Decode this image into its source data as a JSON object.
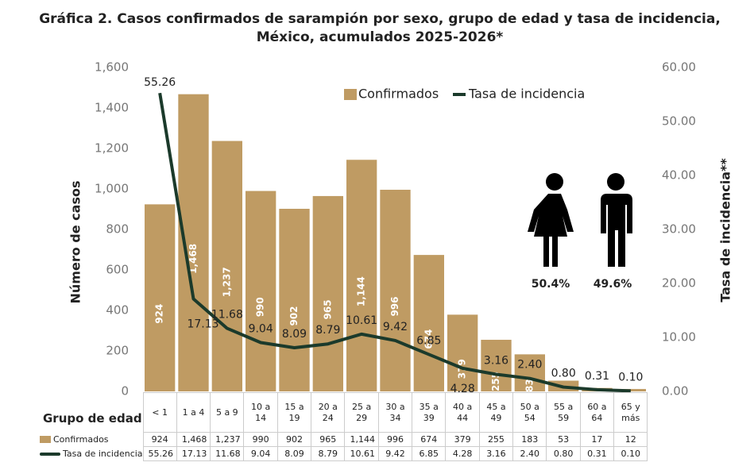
{
  "chart_data": {
    "type": "combo",
    "title": [
      "Gráfica 2. Casos confirmados  de sarampión por sexo, grupo de edad y tasa de incidencia,",
      "México, acumulados 2025-2026*"
    ],
    "categories": [
      "< 1",
      "1 a 4",
      "5 a 9",
      "10 a 14",
      "15 a 19",
      "20 a 24",
      "25 a 29",
      "30 a 34",
      "35 a 39",
      "40 a 44",
      "45 a 49",
      "50 a 54",
      "55 a 59",
      "60 a 64",
      "65 y más"
    ],
    "x_label": "Grupo de edad",
    "y_label": "Número de casos",
    "y2_label": "Tasa de incidencia**",
    "series": [
      {
        "name": "Confirmados",
        "type": "bar",
        "color": "#bf9b63",
        "values": [
          924,
          1468,
          1237,
          990,
          902,
          965,
          1144,
          996,
          674,
          379,
          255,
          183,
          53,
          17,
          12
        ],
        "value_labels": [
          "924",
          "1,468",
          "1,237",
          "990",
          "902",
          "965",
          "1,144",
          "996",
          "674",
          "379",
          "255",
          "183",
          "53",
          "17",
          "12"
        ]
      },
      {
        "name": "Tasa de incidencia",
        "type": "line",
        "axis": "y2",
        "color": "#1b3a2b",
        "values": [
          55.26,
          17.13,
          11.68,
          9.04,
          8.09,
          8.79,
          10.61,
          9.42,
          6.85,
          4.28,
          3.16,
          2.4,
          0.8,
          0.31,
          0.1
        ],
        "value_labels": [
          "55.26",
          "17.13",
          "11.68",
          "9.04",
          "8.09",
          "8.79",
          "10.61",
          "9.42",
          "6.85",
          "4.28",
          "3.16",
          "2.40",
          "0.80",
          "0.31",
          "0.10"
        ]
      }
    ],
    "ylim": [
      0,
      1600
    ],
    "yticks": [
      0,
      200,
      400,
      600,
      800,
      {
        "value": 1000,
        "label": "1,000"
      },
      {
        "value": 1200,
        "label": "1,200"
      },
      {
        "value": 1400,
        "label": "1,400"
      },
      {
        "value": 1600,
        "label": "1,600"
      }
    ],
    "y2lim": [
      0,
      60
    ],
    "y2ticks": [
      {
        "value": 0,
        "label": "0.00"
      },
      {
        "value": 10,
        "label": "10.00"
      },
      {
        "value": 20,
        "label": "20.00"
      },
      {
        "value": 30,
        "label": "30.00"
      },
      {
        "value": 40,
        "label": "40.00"
      },
      {
        "value": 50,
        "label": "50.00"
      },
      {
        "value": 60,
        "label": "60.00"
      }
    ],
    "legend": "top-right",
    "sex_share": {
      "values": [
        50.4,
        49.6
      ],
      "value_labels": [
        "50.4%",
        "49.6%"
      ]
    }
  }
}
